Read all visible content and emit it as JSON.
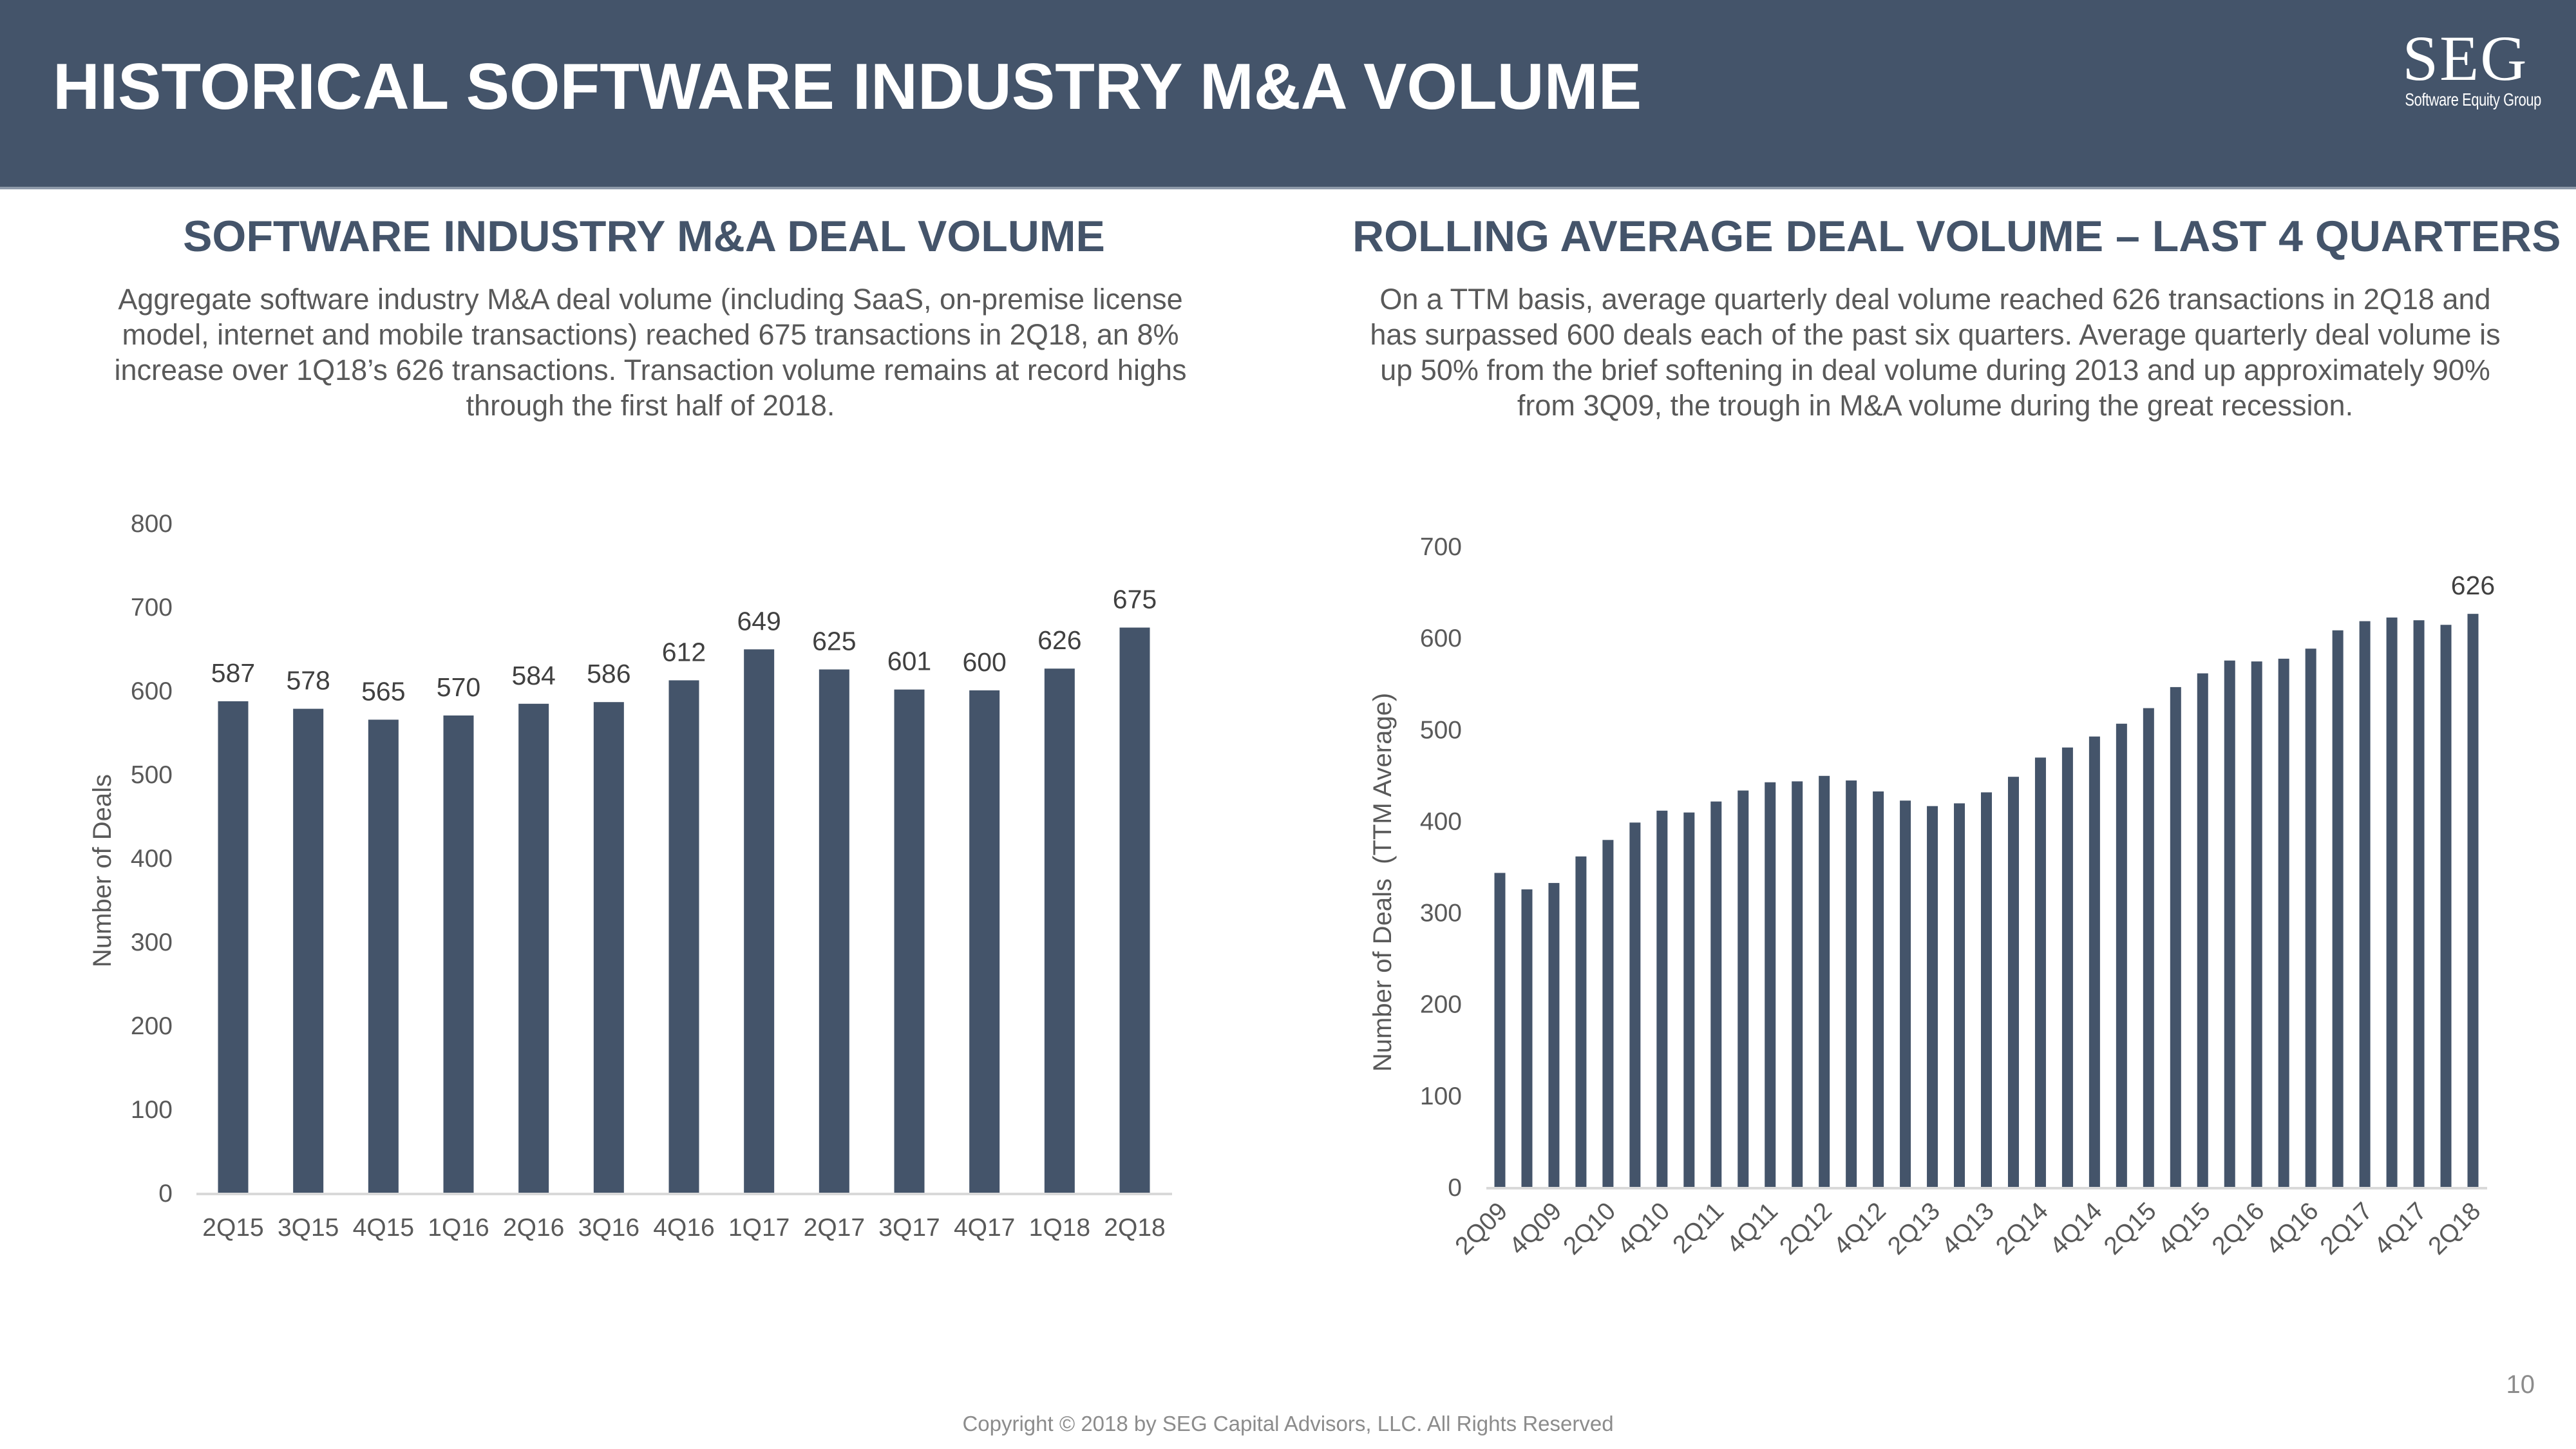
{
  "header": {
    "title": "HISTORICAL SOFTWARE INDUSTRY M&A VOLUME",
    "logo_mark": "SEG",
    "logo_sub": "Software Equity Group",
    "background": "#44546A"
  },
  "left_panel": {
    "title": "SOFTWARE INDUSTRY M&A DEAL VOLUME",
    "description": "Aggregate software industry M&A deal volume (including SaaS, on-premise license model, internet and mobile transactions) reached 675 transactions in 2Q18, an 8% increase over 1Q18’s 626 transactions. Transaction volume remains at record highs through the first half of 2018."
  },
  "right_panel": {
    "title": "ROLLING AVERAGE DEAL VOLUME – LAST 4 QUARTERS",
    "description": "On a TTM basis, average quarterly deal volume reached 626 transactions in 2Q18 and has surpassed 600 deals each of the past six quarters. Average quarterly deal volume is up 50% from the brief softening in deal volume during 2013 and up approximately 90% from 3Q09, the trough in M&A volume during the great recession."
  },
  "chart_data": [
    {
      "type": "bar",
      "title": "SOFTWARE INDUSTRY M&A DEAL VOLUME",
      "xlabel": "",
      "ylabel": "Number of Deals",
      "categories": [
        "2Q15",
        "3Q15",
        "4Q15",
        "1Q16",
        "2Q16",
        "3Q16",
        "4Q16",
        "1Q17",
        "2Q17",
        "3Q17",
        "4Q17",
        "1Q18",
        "2Q18"
      ],
      "values": [
        587,
        578,
        565,
        570,
        584,
        586,
        612,
        649,
        625,
        601,
        600,
        626,
        675
      ],
      "ylim": [
        0,
        800
      ],
      "yticks": [
        0,
        100,
        200,
        300,
        400,
        500,
        600,
        700,
        800
      ],
      "data_labels": "all",
      "grid": false,
      "legend": "none",
      "bar_color": "#44546A"
    },
    {
      "type": "bar",
      "title": "ROLLING AVERAGE DEAL VOLUME – LAST 4 QUARTERS",
      "xlabel": "",
      "ylabel": "Number of Deals  (TTM Average)",
      "categories": [
        "2Q09",
        "3Q09",
        "4Q09",
        "1Q10",
        "2Q10",
        "3Q10",
        "4Q10",
        "1Q11",
        "2Q11",
        "3Q11",
        "4Q11",
        "1Q12",
        "2Q12",
        "3Q12",
        "4Q12",
        "1Q13",
        "2Q13",
        "3Q13",
        "4Q13",
        "1Q14",
        "2Q14",
        "3Q14",
        "4Q14",
        "1Q15",
        "2Q15",
        "3Q15",
        "4Q15",
        "1Q16",
        "2Q16",
        "3Q16",
        "4Q16",
        "1Q17",
        "2Q17",
        "3Q17",
        "4Q17",
        "1Q18",
        "2Q18"
      ],
      "tick_labels_shown": [
        "2Q09",
        "4Q09",
        "2Q10",
        "4Q10",
        "2Q11",
        "4Q11",
        "2Q12",
        "4Q12",
        "2Q13",
        "4Q13",
        "2Q14",
        "4Q14",
        "2Q15",
        "4Q15",
        "2Q16",
        "4Q16",
        "2Q17",
        "4Q17",
        "2Q18"
      ],
      "values": [
        343,
        325,
        332,
        361,
        379,
        398,
        411,
        409,
        421,
        433,
        442,
        443,
        449,
        444,
        432,
        422,
        416,
        419,
        431,
        448,
        469,
        480,
        492,
        506,
        523,
        546,
        561,
        575,
        574,
        577,
        588,
        608,
        618,
        622,
        619,
        614,
        626
      ],
      "ylim": [
        0,
        700
      ],
      "yticks": [
        0,
        100,
        200,
        300,
        400,
        500,
        600,
        700
      ],
      "data_labels": [
        {
          "category": "2Q18",
          "label": "626"
        }
      ],
      "grid": false,
      "legend": "none",
      "bar_color": "#44546A"
    }
  ],
  "footer": {
    "copyright": "Copyright © 2018 by SEG Capital Advisors, LLC. All Rights Reserved",
    "page_number": "10"
  }
}
